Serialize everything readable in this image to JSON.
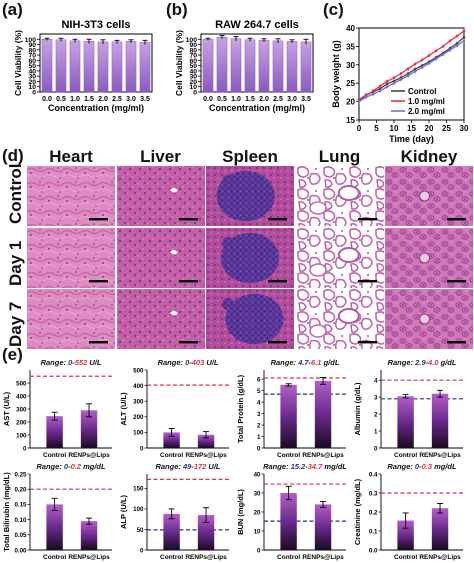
{
  "panels": {
    "a": {
      "letter": "(a)"
    },
    "b": {
      "letter": "(b)"
    },
    "c": {
      "letter": "(c)"
    },
    "d": {
      "letter": "(d)"
    },
    "e": {
      "letter": "(e)"
    }
  },
  "tissue": {
    "columns": [
      "Heart",
      "Liver",
      "Spleen",
      "Lung",
      "Kidney"
    ],
    "rows": [
      "Control",
      "Day 1",
      "Day 7"
    ]
  },
  "chart_data": [
    {
      "id": "a",
      "type": "bar",
      "title": "NIH-3T3 cells",
      "xlabel": "Concentration (mg/ml)",
      "ylabel": "Cell Viability (%)",
      "categories": [
        "0.0",
        "0.5",
        "1.0",
        "1.5",
        "2.0",
        "2.5",
        "3.0",
        "3.5"
      ],
      "values": [
        100,
        99,
        97,
        96,
        95,
        95,
        96,
        94
      ],
      "errors": [
        2,
        3,
        3,
        4,
        4,
        3,
        3,
        4
      ],
      "ylim": [
        0,
        110
      ],
      "yticks": [
        "0",
        "10",
        "20",
        "30",
        "40",
        "50",
        "60",
        "70",
        "80",
        "90",
        "100"
      ]
    },
    {
      "id": "b",
      "type": "bar",
      "title": "RAW 264.7 cells",
      "xlabel": "Concentration (mg/ml)",
      "ylabel": "Cell Viability (%)",
      "categories": [
        "0.0",
        "0.5",
        "1.0",
        "1.5",
        "2.0",
        "2.5",
        "3.0",
        "3.5"
      ],
      "values": [
        100,
        104,
        101,
        99,
        98,
        97,
        96,
        95
      ],
      "errors": [
        2,
        3,
        4,
        3,
        3,
        4,
        3,
        5
      ],
      "ylim": [
        0,
        110
      ],
      "yticks": [
        "0",
        "10",
        "20",
        "30",
        "40",
        "50",
        "60",
        "70",
        "80",
        "90",
        "100"
      ]
    },
    {
      "id": "c",
      "type": "line",
      "title": "",
      "xlabel": "Time (day)",
      "ylabel": "Body weight (g)",
      "x": [
        0,
        2,
        4,
        6,
        8,
        10,
        12,
        14,
        16,
        18,
        20,
        22,
        24,
        26,
        28,
        30
      ],
      "series": [
        {
          "name": "Control",
          "values": [
            20.5,
            21.8,
            22.6,
            23.5,
            24.8,
            25.6,
            26.5,
            27.6,
            28.8,
            29.8,
            30.8,
            32.0,
            33.2,
            34.5,
            35.8,
            37.5
          ]
        },
        {
          "name": "1.0 mg/ml",
          "values": [
            20.2,
            21.6,
            22.9,
            24.2,
            25.5,
            26.5,
            27.6,
            28.9,
            30.2,
            31.3,
            32.5,
            33.8,
            35.0,
            36.5,
            37.8,
            39.2
          ]
        },
        {
          "name": "2.0 mg/ml",
          "values": [
            20.0,
            21.2,
            22.0,
            22.9,
            24.0,
            25.0,
            26.0,
            27.0,
            28.2,
            29.3,
            30.4,
            31.6,
            32.8,
            34.0,
            35.2,
            36.5
          ]
        }
      ],
      "colors": {
        "Control": "#444444",
        "1.0 mg/ml": "#e8334a",
        "2.0 mg/ml": "#7d6bd6"
      },
      "ylim": [
        15,
        40
      ],
      "yticks": [
        "15",
        "20",
        "25",
        "30",
        "35",
        "40"
      ],
      "xlim": [
        0,
        30
      ],
      "xticks": [
        "0",
        "5",
        "10",
        "15",
        "20",
        "25",
        "30"
      ],
      "legend": "bottom-right"
    },
    {
      "id": "e1",
      "type": "bar",
      "ylabel": "AST (U/L)",
      "range_prefix": "Range: ",
      "range_low": "0",
      "range_sep": "-",
      "range_high": "552",
      "range_unit": " U/L",
      "categories": [
        "Control",
        "RENPs@Lips"
      ],
      "values": [
        245,
        290
      ],
      "errors": [
        30,
        50
      ],
      "ylim": [
        0,
        600
      ],
      "yticks": [
        "0",
        "100",
        "200",
        "300",
        "400",
        "500"
      ],
      "ref_high": 552
    },
    {
      "id": "e2",
      "type": "bar",
      "ylabel": "ALT (U/L)",
      "range_prefix": "Range: ",
      "range_low": "0",
      "range_sep": "-",
      "range_high": "403",
      "range_unit": " U/L",
      "categories": [
        "Control",
        "RENPs@Lips"
      ],
      "values": [
        100,
        85
      ],
      "errors": [
        25,
        20
      ],
      "ylim": [
        0,
        500
      ],
      "yticks": [
        "0",
        "100",
        "200",
        "300",
        "400",
        "500"
      ],
      "ref_high": 403
    },
    {
      "id": "e3",
      "type": "bar",
      "ylabel": "Total Protein (g/dL)",
      "range_prefix": "Range: ",
      "range_low": "4.7",
      "range_sep": "-",
      "range_high": "6.1",
      "range_unit": " g/dL",
      "categories": [
        "Control",
        "RENPs@Lips"
      ],
      "values": [
        5.5,
        5.85
      ],
      "errors": [
        0.1,
        0.3
      ],
      "ylim": [
        0,
        6.8
      ],
      "yticks": [
        "0",
        "1",
        "2",
        "3",
        "4",
        "5",
        "6"
      ],
      "ref_low": 4.7,
      "ref_high": 6.1
    },
    {
      "id": "e4",
      "type": "bar",
      "ylabel": "Albumin (g/dL)",
      "range_prefix": "Range: ",
      "range_low": "2.9",
      "range_sep": "-",
      "range_high": "4.0",
      "range_unit": " g/dL",
      "categories": [
        "Control",
        "RENPs@Lips"
      ],
      "values": [
        3.05,
        3.2
      ],
      "errors": [
        0.1,
        0.2
      ],
      "ylim": [
        0,
        4.6
      ],
      "yticks": [
        "0",
        "1",
        "2",
        "3",
        "4"
      ],
      "ref_low": 2.9,
      "ref_high": 4.0
    },
    {
      "id": "e5",
      "type": "bar",
      "ylabel": "Total Bilirubin (mg/dL)",
      "range_prefix": "Range: ",
      "range_low": "0",
      "range_sep": "-",
      "range_high": "0.2",
      "range_unit": " mg/dL",
      "categories": [
        "Control",
        "RENPs@Lips"
      ],
      "values": [
        0.15,
        0.095
      ],
      "errors": [
        0.02,
        0.01
      ],
      "ylim": [
        0,
        0.25
      ],
      "yticks": [
        "0.00",
        "0.05",
        "0.10",
        "0.15",
        "0.20",
        "0.25"
      ],
      "ref_high": 0.2
    },
    {
      "id": "e6",
      "type": "bar",
      "ylabel": "ALP (U/L)",
      "range_prefix": "Range: ",
      "range_low": "49",
      "range_sep": "-",
      "range_high": "172",
      "range_unit": " U/L",
      "categories": [
        "Control",
        "RENPs@Lips"
      ],
      "values": [
        88,
        85
      ],
      "errors": [
        12,
        18
      ],
      "ylim": [
        0,
        185
      ],
      "yticks": [
        "0",
        "50",
        "100",
        "150"
      ],
      "ref_low": 49,
      "ref_high": 172
    },
    {
      "id": "e7",
      "type": "bar",
      "ylabel": "BUN (mg/dL)",
      "range_prefix": "Range: ",
      "range_low": "15.2",
      "range_sep": "-",
      "range_high": "34.7",
      "range_unit": " mg/dL",
      "categories": [
        "Control",
        "RENPs@Lips"
      ],
      "values": [
        30,
        24
      ],
      "errors": [
        3.5,
        1.5
      ],
      "ylim": [
        0,
        40
      ],
      "yticks": [
        "0",
        "10",
        "20",
        "30",
        "40"
      ],
      "ref_low": 15.2,
      "ref_high": 34.7
    },
    {
      "id": "e8",
      "type": "bar",
      "ylabel": "Creatinine (mg/dL)",
      "range_prefix": "Range: ",
      "range_low": "0",
      "range_sep": "-",
      "range_high": "0.3",
      "range_unit": " mg/dL",
      "categories": [
        "Control",
        "RENPs@Lips"
      ],
      "values": [
        0.155,
        0.22
      ],
      "errors": [
        0.04,
        0.025
      ],
      "ylim": [
        0,
        0.4
      ],
      "yticks": [
        "0.0",
        "0.1",
        "0.2",
        "0.3",
        "0.4"
      ],
      "ref_high": 0.3
    }
  ],
  "colors": {
    "bar_top": "#c8a2e0",
    "bar_bottom": "#8a5bbf",
    "bar_e_top": "#b45fc9",
    "bar_e_bottom": "#1a0a22",
    "ref_line": "#d8343f",
    "ref_low_line": "#2b2e8c",
    "range_red": "#d8343f",
    "range_blue": "#2b2e8c",
    "he_pink": "#d77fb8",
    "he_purple": "#7a3f9a"
  }
}
